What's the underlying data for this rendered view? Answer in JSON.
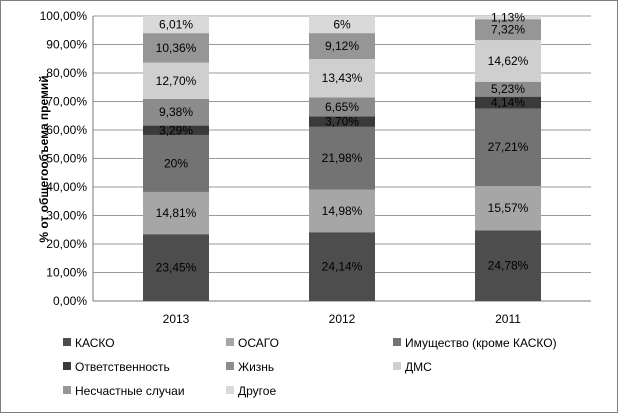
{
  "chart_data": {
    "type": "bar",
    "stacked": true,
    "categories": [
      "2013",
      "2012",
      "2011"
    ],
    "ylabel": "% от общегообъема премий",
    "ylim": [
      0,
      100
    ],
    "y_ticks": [
      "0,00%",
      "10,00%",
      "20,00%",
      "30,00%",
      "40,00%",
      "50,00%",
      "60,00%",
      "70,00%",
      "80,00%",
      "90,00%",
      "100,00%"
    ],
    "grid": true,
    "legend_position": "bottom",
    "series": [
      {
        "name": "КАСКО",
        "color": "#4d4d4d",
        "values": [
          23.45,
          24.14,
          24.78
        ],
        "labels": [
          "23,45%",
          "24,14%",
          "24,78%"
        ]
      },
      {
        "name": "ОСАГО",
        "color": "#a6a6a6",
        "values": [
          14.81,
          14.98,
          15.57
        ],
        "labels": [
          "14,81%",
          "14,98%",
          "15,57%"
        ]
      },
      {
        "name": "Имущество (кроме КАСКО)",
        "color": "#737373",
        "values": [
          20,
          21.98,
          27.21
        ],
        "labels": [
          "20%",
          "21,98%",
          "27,21%"
        ]
      },
      {
        "name": "Ответственность",
        "color": "#3a3a3a",
        "values": [
          3.29,
          3.7,
          4.14
        ],
        "labels": [
          "3,29%",
          "3,70%",
          "4,14%"
        ]
      },
      {
        "name": "Жизнь",
        "color": "#8c8c8c",
        "values": [
          9.38,
          6.65,
          5.23
        ],
        "labels": [
          "9,38%",
          "6,65%",
          "5,23%"
        ]
      },
      {
        "name": "ДМС",
        "color": "#cfcfcf",
        "values": [
          12.7,
          13.43,
          14.62
        ],
        "labels": [
          "12,70%",
          "13,43%",
          "14,62%"
        ]
      },
      {
        "name": "Несчастные случаи",
        "color": "#969696",
        "values": [
          10.36,
          9.12,
          7.32
        ],
        "labels": [
          "10,36%",
          "9,12%",
          "7,32%"
        ]
      },
      {
        "name": "Другое",
        "color": "#d9d9d9",
        "values": [
          6.01,
          6,
          1.13
        ],
        "labels": [
          "6,01%",
          "6%",
          "1,13%"
        ]
      }
    ]
  }
}
